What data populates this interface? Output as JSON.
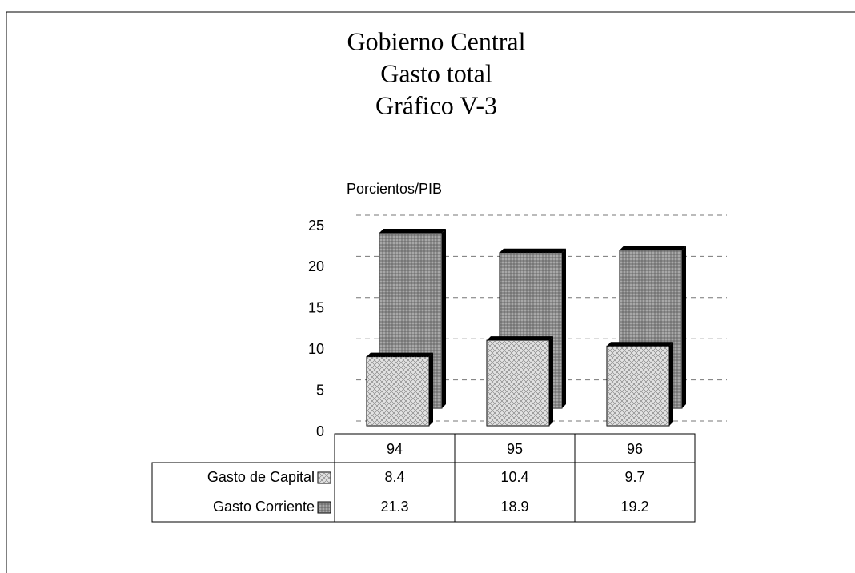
{
  "chart_data": {
    "type": "bar3d",
    "title": [
      "Gobierno Central",
      "Gasto total",
      "Gráfico V-3"
    ],
    "y_axis_label": "Porcientos/PIB",
    "categories": [
      "94",
      "95",
      "96"
    ],
    "series": [
      {
        "name": "Gasto de Capital",
        "color": "#e2e2e2",
        "values": [
          8.4,
          10.4,
          9.7
        ]
      },
      {
        "name": "Gasto Corriente",
        "color": "#a8a8a8",
        "values": [
          21.3,
          18.9,
          19.2
        ]
      }
    ],
    "ylim": [
      0,
      25
    ],
    "yticks": [
      0,
      5,
      10,
      15,
      20,
      25
    ],
    "grid": true
  }
}
